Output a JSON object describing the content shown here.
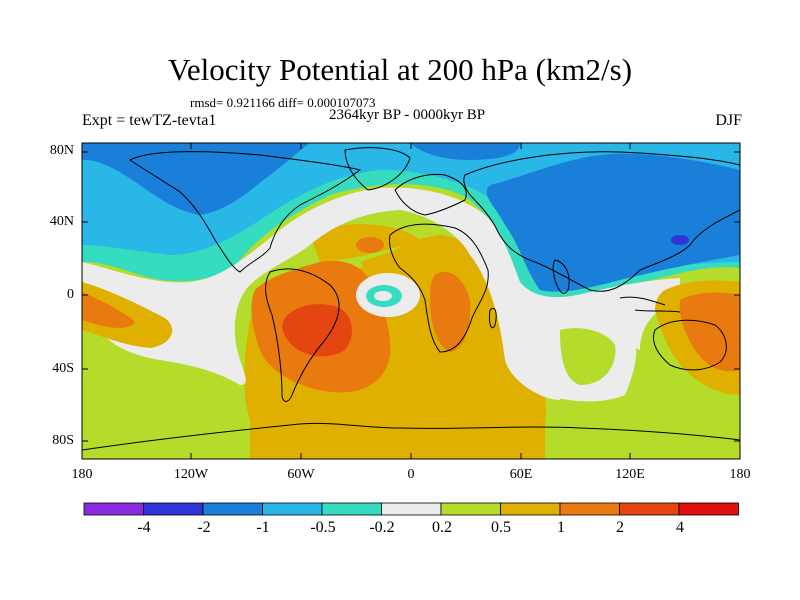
{
  "title": "Velocity Potential at 200 hPa (km2/s)",
  "stats": "rmsd= 0.921166 diff= 0.000107073",
  "expt": "Expt = tewTZ-tevta1",
  "period": "2364kyr BP - 0000kyr BP",
  "season": "DJF",
  "lat_labels": [
    "80N",
    "40N",
    "0",
    "40S",
    "80S"
  ],
  "lon_labels": [
    "180",
    "120W",
    "60W",
    "0",
    "60E",
    "120E",
    "180"
  ],
  "colorbar": {
    "labels": [
      "-4",
      "-2",
      "-1",
      "-0.5",
      "-0.2",
      "0.2",
      "0.5",
      "1",
      "2",
      "4"
    ],
    "colors": [
      "#8a2be2",
      "#2f34d6",
      "#1a7fd9",
      "#29b7e8",
      "#35dcc0",
      "#ececec",
      "#b5dc2a",
      "#e0b000",
      "#e87a10",
      "#e54510",
      "#e01010"
    ]
  },
  "map_colors": {
    "band_neg3": "#1a7fd9",
    "band_neg2": "#29b7e8",
    "band_neg1": "#35dcc0",
    "band_zero": "#ececec",
    "band_pos1": "#b5dc2a",
    "band_pos2": "#e0b000",
    "band_pos3": "#e87a10",
    "band_pos4": "#e54510",
    "band_neg4": "#2f34d6"
  }
}
